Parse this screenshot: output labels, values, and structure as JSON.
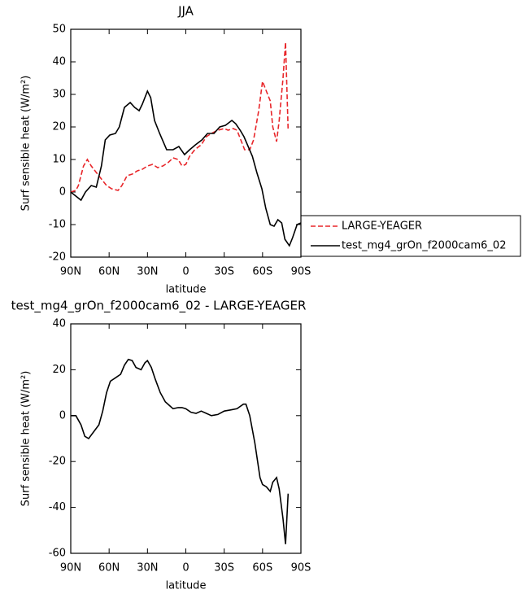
{
  "chart_data": [
    {
      "type": "line",
      "title": "JJA",
      "xlabel": "latitude",
      "ylabel": "Surf sensible heat (W/m²)",
      "xlim": [
        90,
        -90
      ],
      "xticks": [
        {
          "value": 90,
          "label": "90N"
        },
        {
          "value": 60,
          "label": "60N"
        },
        {
          "value": 30,
          "label": "30N"
        },
        0,
        {
          "value": -30,
          "label": "30S"
        },
        {
          "value": -60,
          "label": "60S"
        },
        {
          "value": -90,
          "label": "90S"
        }
      ],
      "ylim": [
        -20,
        50
      ],
      "yticks": [
        -20,
        -10,
        0,
        10,
        20,
        30,
        40,
        50
      ],
      "legend": "right",
      "series": [
        {
          "name": "LARGE-YEAGER",
          "color": "#e8262a",
          "line_style": "dashed",
          "x": [
            90,
            86,
            84,
            80,
            77,
            74,
            70,
            66,
            62,
            58,
            53,
            50,
            46,
            42,
            38,
            34,
            30,
            26,
            22,
            18,
            14,
            10,
            6,
            3,
            0,
            -3,
            -7,
            -12,
            -16,
            -20,
            -25,
            -30,
            -33,
            -37,
            -40,
            -43,
            -46,
            -50,
            -53,
            -57,
            -60,
            -63,
            -66,
            -68,
            -71,
            -73,
            -76,
            -78,
            -80
          ],
          "values": [
            0,
            0.5,
            2,
            8,
            10,
            8,
            6,
            4,
            2,
            1,
            0.5,
            2,
            5,
            5.5,
            6.5,
            7,
            8,
            8.5,
            7.5,
            8,
            9,
            10.5,
            10,
            8,
            8.5,
            11,
            13,
            14.5,
            17,
            18,
            19,
            19.5,
            19,
            19.5,
            19,
            16,
            13,
            13,
            16,
            25,
            34,
            31,
            28,
            20,
            15.5,
            22,
            35,
            46,
            19
          ]
        },
        {
          "name": "test_mg4_grOn_f2000cam6_02",
          "color": "#000000",
          "line_style": "solid",
          "x": [
            90,
            82,
            78.5,
            74,
            70,
            66,
            63,
            59.5,
            55,
            52,
            48,
            43.5,
            40,
            36.5,
            34,
            30,
            27.5,
            24.5,
            20.5,
            15,
            10,
            5.5,
            1,
            -3,
            -7.5,
            -12.5,
            -17,
            -22,
            -26.5,
            -31,
            -36,
            -39,
            -42.5,
            -45.5,
            -52,
            -55.5,
            -59.5,
            -62.5,
            -66,
            -69,
            -72,
            -75,
            -77.5,
            -81,
            -83.5,
            -87,
            -90
          ],
          "values": [
            0,
            -2.5,
            0,
            2,
            1.5,
            8,
            16,
            17.5,
            18,
            20,
            26,
            27.5,
            26,
            25,
            27,
            31,
            29,
            22,
            18,
            13,
            13,
            14,
            11.5,
            13,
            14.5,
            16,
            18,
            18,
            20,
            20.5,
            22,
            21,
            19,
            17,
            11,
            6,
            1,
            -5,
            -10,
            -10.5,
            -8.5,
            -9.5,
            -14.5,
            -16.5,
            -14,
            -10,
            -9.5
          ]
        }
      ]
    },
    {
      "type": "line",
      "title": "test_mg4_grOn_f2000cam6_02 - LARGE-YEAGER",
      "xlabel": "latitude",
      "ylabel": "Surf sensible heat (W/m²)",
      "xlim": [
        90,
        -90
      ],
      "xticks": [
        {
          "value": 90,
          "label": "90N"
        },
        {
          "value": 60,
          "label": "60N"
        },
        {
          "value": 30,
          "label": "30N"
        },
        0,
        {
          "value": -30,
          "label": "30S"
        },
        {
          "value": -60,
          "label": "60S"
        },
        {
          "value": -90,
          "label": "90S"
        }
      ],
      "ylim": [
        -60,
        40
      ],
      "yticks": [
        -60,
        -40,
        -20,
        0,
        20,
        40
      ],
      "series": [
        {
          "color": "#000000",
          "line_style": "solid",
          "x": [
            90,
            86,
            82,
            79,
            76,
            72,
            68,
            65,
            62,
            59,
            55,
            51,
            48,
            45,
            42,
            39,
            35,
            32,
            30,
            27,
            24,
            20,
            16,
            13,
            10,
            6,
            3,
            0,
            -4,
            -8,
            -12,
            -16,
            -20,
            -25,
            -30,
            -35,
            -40,
            -45,
            -47,
            -50,
            -54,
            -58,
            -60,
            -63,
            -66,
            -68,
            -71,
            -73,
            -76,
            -78,
            -80
          ],
          "values": [
            0,
            0,
            -4,
            -9,
            -10,
            -7,
            -4,
            2,
            10,
            15,
            16.5,
            18,
            22,
            24.5,
            24,
            21,
            20,
            23,
            24,
            21,
            16,
            10,
            6,
            4.5,
            3,
            3.5,
            3.5,
            3,
            1.5,
            1,
            2,
            1,
            0,
            0.5,
            2,
            2.5,
            3,
            5,
            5,
            0,
            -12,
            -27,
            -30,
            -31,
            -33,
            -29,
            -27,
            -32,
            -45,
            -56,
            -34
          ]
        }
      ]
    }
  ]
}
